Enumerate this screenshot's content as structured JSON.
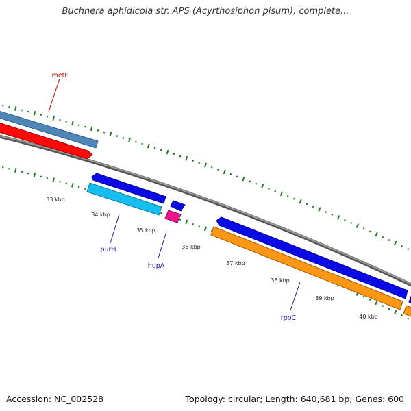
{
  "title": "Buchnera aphidicola str. APS (Acyrthosiphon pisum), complete...",
  "footer": {
    "accession": "Accession: NC_002528",
    "summary": "Topology: circular; Length: 640,681 bp; Genes: 600"
  },
  "colors": {
    "backbone": "#7d7d7d",
    "tick_mark": "#1a7a1a",
    "steelblue_feature": "#4f86b8",
    "red_feature": "#ff0a0a",
    "blue_feature": "#0a0ae6",
    "cyan_feature": "#14bff0",
    "magenta_feature": "#f0148c",
    "orange_feature": "#ff9614",
    "label_blue": "#1c1cb0",
    "label_red": "#c00000"
  },
  "ticks": {
    "unit": "kbp",
    "labels": [
      "33 kbp",
      "34 kbp",
      "35 kbp",
      "36 kbp",
      "37 kbp",
      "38 kbp",
      "39 kbp",
      "40 kbp"
    ]
  },
  "gene_labels": [
    {
      "name": "metE"
    },
    {
      "name": "purH"
    },
    {
      "name": "hupA"
    },
    {
      "name": "rpoC"
    }
  ]
}
